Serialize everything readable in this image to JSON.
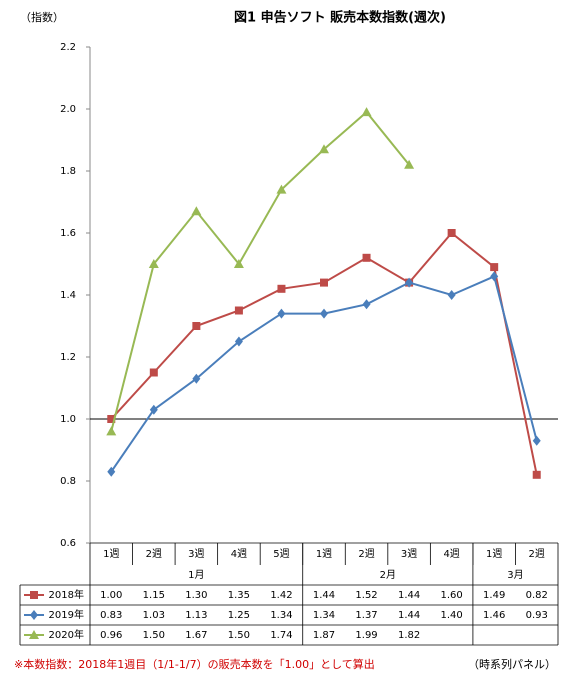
{
  "chart_data": {
    "type": "line",
    "title": "図1  申告ソフト 販売本数指数(週次)",
    "y_axis_label": "（指数）",
    "categories": [
      "1週",
      "2週",
      "3週",
      "4週",
      "5週",
      "1週",
      "2週",
      "3週",
      "4週",
      "1週",
      "2週"
    ],
    "months": [
      {
        "label": "1月",
        "span": 5
      },
      {
        "label": "2月",
        "span": 4
      },
      {
        "label": "3月",
        "span": 2
      }
    ],
    "series": [
      {
        "name": "2018年",
        "color": "#be4b48",
        "marker": "square",
        "values": [
          1.0,
          1.15,
          1.3,
          1.35,
          1.42,
          1.44,
          1.52,
          1.44,
          1.6,
          1.49,
          0.82
        ],
        "value_labels": [
          "1.00",
          "1.15",
          "1.30",
          "1.35",
          "1.42",
          "1.44",
          "1.52",
          "1.44",
          "1.60",
          "1.49",
          "0.82"
        ]
      },
      {
        "name": "2019年",
        "color": "#4a7ebb",
        "marker": "diamond",
        "values": [
          0.83,
          1.03,
          1.13,
          1.25,
          1.34,
          1.34,
          1.37,
          1.44,
          1.4,
          1.46,
          0.93
        ],
        "value_labels": [
          "0.83",
          "1.03",
          "1.13",
          "1.25",
          "1.34",
          "1.34",
          "1.37",
          "1.44",
          "1.40",
          "1.46",
          "0.93"
        ]
      },
      {
        "name": "2020年",
        "color": "#98b954",
        "marker": "triangle",
        "values": [
          0.96,
          1.5,
          1.67,
          1.5,
          1.74,
          1.87,
          1.99,
          1.82,
          null,
          null,
          null
        ],
        "value_labels": [
          "0.96",
          "1.50",
          "1.67",
          "1.50",
          "1.74",
          "1.87",
          "1.99",
          "1.82",
          null,
          null,
          null
        ]
      }
    ],
    "ylim": [
      0.6,
      2.2
    ],
    "yticks": [
      0.6,
      0.8,
      {
        "value": 1,
        "label": "1.0"
      },
      1.2,
      1.4,
      1.6,
      1.8,
      {
        "value": 2,
        "label": "2.0"
      },
      2.2
    ],
    "reference_line": 1,
    "footnote": "※本数指数：2018年1週目（1/1-1/7）の販売本数を「1.00」として算出",
    "source_note": "（時系列パネル）"
  }
}
